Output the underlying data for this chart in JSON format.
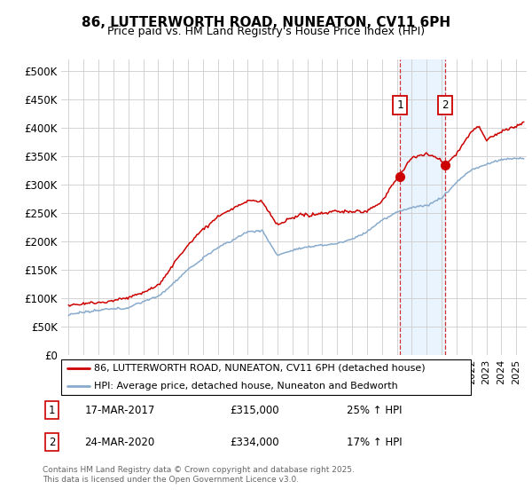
{
  "title": "86, LUTTERWORTH ROAD, NUNEATON, CV11 6PH",
  "subtitle": "Price paid vs. HM Land Registry's House Price Index (HPI)",
  "ylabel_ticks": [
    "£0",
    "£50K",
    "£100K",
    "£150K",
    "£200K",
    "£250K",
    "£300K",
    "£350K",
    "£400K",
    "£450K",
    "£500K"
  ],
  "ytick_values": [
    0,
    50000,
    100000,
    150000,
    200000,
    250000,
    300000,
    350000,
    400000,
    450000,
    500000
  ],
  "ylim": [
    0,
    520000
  ],
  "xlim_start": 1994.5,
  "xlim_end": 2025.7,
  "marker1_x": 2017.21,
  "marker1_y": 315000,
  "marker2_x": 2020.23,
  "marker2_y": 334000,
  "legend_line1": "86, LUTTERWORTH ROAD, NUNEATON, CV11 6PH (detached house)",
  "legend_line2": "HPI: Average price, detached house, Nuneaton and Bedworth",
  "footer": "Contains HM Land Registry data © Crown copyright and database right 2025.\nThis data is licensed under the Open Government Licence v3.0.",
  "line_color_price": "#cc0000",
  "line_color_hpi": "#88aacc",
  "background_color": "#ffffff",
  "grid_color": "#cccccc",
  "title_fontsize": 11,
  "subtitle_fontsize": 9
}
